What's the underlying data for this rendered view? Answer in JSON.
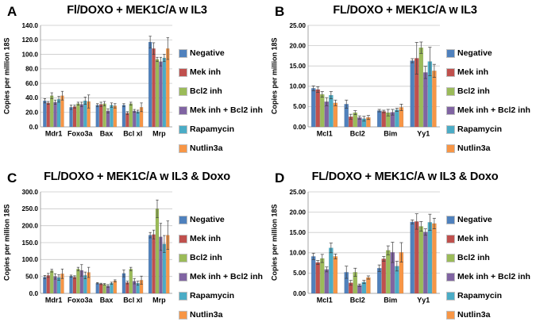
{
  "style": {
    "background": "#ffffff",
    "text_color": "#000000",
    "grid_color": "#c9c9c9",
    "axis_color": "#8e8e8e",
    "error_color": "#3f3f3f"
  },
  "chart_data": [
    {
      "type": "bar",
      "panel": "A",
      "title": "Fl/DOXO + MEK1C/A w IL3",
      "ylabel": "Copies per million 18S",
      "xlabel": "",
      "ylim": [
        0,
        140
      ],
      "ystep": 20,
      "tick_decimals": 1,
      "grid": true,
      "legend_position": "right",
      "categories": [
        "Mdr1",
        "Foxo3a",
        "Bax",
        "Bcl xl",
        "Mrp"
      ],
      "series": [
        {
          "name": "Negative",
          "color": "#4F81BD",
          "values": [
            36,
            27,
            30,
            30,
            117
          ],
          "errors": [
            3,
            3,
            2,
            2,
            8
          ]
        },
        {
          "name": "Mek inh",
          "color": "#C0504D",
          "values": [
            33,
            28,
            31,
            19,
            108
          ],
          "errors": [
            2,
            2,
            3,
            2,
            8
          ]
        },
        {
          "name": "Bcl2 inh",
          "color": "#9BBB59",
          "values": [
            43,
            32,
            32,
            32,
            93
          ],
          "errors": [
            4,
            2,
            3,
            2,
            3
          ]
        },
        {
          "name": "Mek inh + Bcl2 inh",
          "color": "#8064A2",
          "values": [
            34,
            31,
            22,
            22,
            90
          ],
          "errors": [
            3,
            3,
            3,
            2,
            6
          ]
        },
        {
          "name": "Rapamycin",
          "color": "#4BACC6",
          "values": [
            38,
            36,
            30,
            21,
            95
          ],
          "errors": [
            4,
            5,
            3,
            2,
            5
          ]
        },
        {
          "name": "Nutlin3a",
          "color": "#F79646",
          "values": [
            43,
            35,
            29,
            27,
            108
          ],
          "errors": [
            6,
            9,
            3,
            6,
            15
          ]
        }
      ]
    },
    {
      "type": "bar",
      "panel": "B",
      "title": "FL/DOXO + MEK1C/A w IL3",
      "ylabel": "Copies per million 18S",
      "xlabel": "",
      "ylim": [
        0,
        25
      ],
      "ystep": 5,
      "tick_decimals": 2,
      "grid": true,
      "legend_position": "right",
      "categories": [
        "Mcl1",
        "Bcl2",
        "Bim",
        "Yy1"
      ],
      "series": [
        {
          "name": "Negative",
          "color": "#4F81BD",
          "values": [
            9.5,
            5.6,
            4.0,
            16.3
          ],
          "errors": [
            0.6,
            1.0,
            0.3,
            0.5
          ]
        },
        {
          "name": "Mek inh",
          "color": "#C0504D",
          "values": [
            9.2,
            2.5,
            3.8,
            16.9
          ],
          "errors": [
            0.7,
            0.6,
            0.3,
            3.9
          ]
        },
        {
          "name": "Bcl2 inh",
          "color": "#9BBB59",
          "values": [
            8.0,
            3.5,
            3.5,
            19.5
          ],
          "errors": [
            0.7,
            0.5,
            0.8,
            1.4
          ]
        },
        {
          "name": "Mek inh + Bcl2 inh",
          "color": "#8064A2",
          "values": [
            6.2,
            2.3,
            3.6,
            13.4
          ],
          "errors": [
            1.0,
            0.4,
            0.7,
            1.5
          ]
        },
        {
          "name": "Rapamycin",
          "color": "#4BACC6",
          "values": [
            7.8,
            2.0,
            4.2,
            16.1
          ],
          "errors": [
            0.9,
            0.6,
            0.4,
            3.5
          ]
        },
        {
          "name": "Nutlin3a",
          "color": "#F79646",
          "values": [
            5.9,
            2.3,
            4.8,
            13.8
          ],
          "errors": [
            0.7,
            0.5,
            0.8,
            1.6
          ]
        }
      ]
    },
    {
      "type": "bar",
      "panel": "C",
      "title": "FL/DOXO + MEK1C/A w IL3 & Doxo",
      "ylabel": "Copies per million 18S",
      "xlabel": "",
      "ylim": [
        0,
        300
      ],
      "ystep": 50,
      "tick_decimals": 1,
      "grid": true,
      "legend_position": "right",
      "categories": [
        "Mdr1",
        "Foxo3a",
        "Bax",
        "Bcl xl",
        "Mrp"
      ],
      "series": [
        {
          "name": "Negative",
          "color": "#4F81BD",
          "values": [
            48,
            51,
            30,
            59,
            172
          ],
          "errors": [
            5,
            3,
            2,
            10,
            8
          ]
        },
        {
          "name": "Mek inh",
          "color": "#C0504D",
          "values": [
            53,
            48,
            28,
            32,
            174
          ],
          "errors": [
            6,
            4,
            2,
            4,
            13
          ]
        },
        {
          "name": "Bcl2 inh",
          "color": "#9BBB59",
          "values": [
            67,
            72,
            27,
            72,
            250
          ],
          "errors": [
            4,
            5,
            2,
            5,
            26
          ]
        },
        {
          "name": "Mek inh + Bcl2 inh",
          "color": "#8064A2",
          "values": [
            50,
            68,
            22,
            36,
            167
          ],
          "errors": [
            8,
            17,
            4,
            8,
            40
          ]
        },
        {
          "name": "Rapamycin",
          "color": "#4BACC6",
          "values": [
            47,
            53,
            30,
            30,
            146
          ],
          "errors": [
            8,
            10,
            3,
            6,
            25
          ]
        },
        {
          "name": "Nutlin3a",
          "color": "#F79646",
          "values": [
            58,
            62,
            37,
            39,
            172
          ],
          "errors": [
            14,
            15,
            3,
            12,
            42
          ]
        }
      ]
    },
    {
      "type": "bar",
      "panel": "D",
      "title": "FL/DOXO + MEK1C/A w IL3 & Doxo",
      "ylabel": "Copies per million 18S",
      "xlabel": "",
      "ylim": [
        0,
        25
      ],
      "ystep": 5,
      "tick_decimals": 2,
      "grid": true,
      "legend_position": "right",
      "categories": [
        "Mcl1",
        "Bcl2",
        "Bim",
        "Yy1"
      ],
      "series": [
        {
          "name": "Negative",
          "color": "#4F81BD",
          "values": [
            9.1,
            5.2,
            6.2,
            17.6
          ],
          "errors": [
            0.8,
            1.5,
            0.8,
            0.5
          ]
        },
        {
          "name": "Mek inh",
          "color": "#C0504D",
          "values": [
            7.6,
            2.6,
            8.5,
            17.7
          ],
          "errors": [
            0.5,
            0.6,
            0.6,
            1.9
          ]
        },
        {
          "name": "Bcl2 inh",
          "color": "#9BBB59",
          "values": [
            8.6,
            5.2,
            10.6,
            16.5
          ],
          "errors": [
            1.0,
            1.0,
            1.1,
            1.2
          ]
        },
        {
          "name": "Mek inh + Bcl2 inh",
          "color": "#8064A2",
          "values": [
            5.9,
            2.0,
            10.1,
            15.1
          ],
          "errors": [
            0.6,
            0.3,
            2.5,
            0.8
          ]
        },
        {
          "name": "Rapamycin",
          "color": "#4BACC6",
          "values": [
            11.2,
            2.8,
            6.7,
            17.5
          ],
          "errors": [
            1.2,
            0.4,
            1.2,
            2.0
          ]
        },
        {
          "name": "Nutlin3a",
          "color": "#F79646",
          "values": [
            9.1,
            3.9,
            10.1,
            17.2
          ],
          "errors": [
            0.6,
            0.4,
            2.4,
            1.3
          ]
        }
      ]
    }
  ]
}
